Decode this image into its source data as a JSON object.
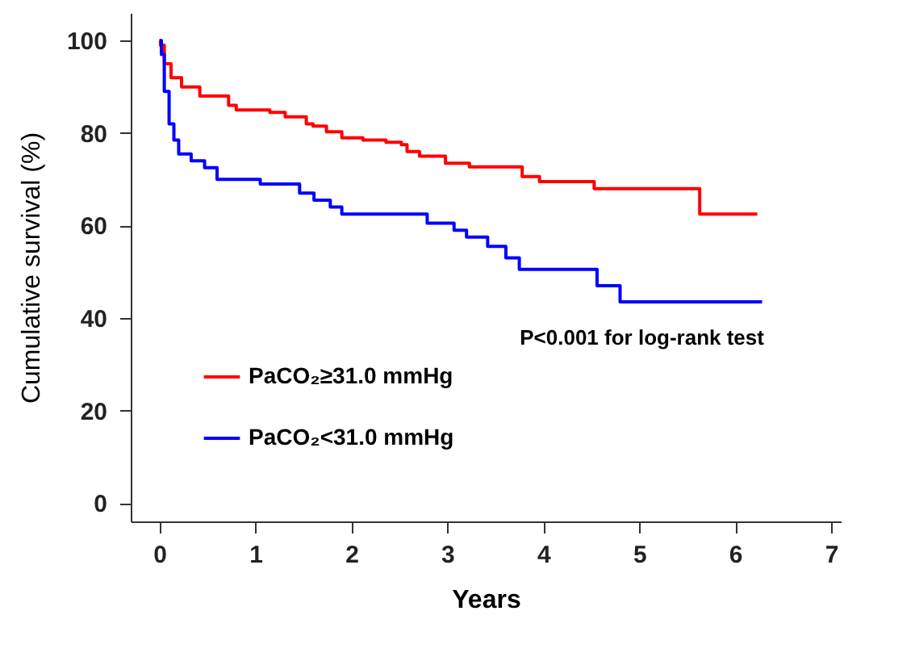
{
  "chart_data": {
    "type": "step",
    "xlabel": "Years",
    "ylabel": "Cumulative survival (%)",
    "xlim": [
      -0.3,
      7.1
    ],
    "xticks": [
      0,
      1,
      2,
      3,
      4,
      5,
      6,
      7
    ],
    "ylim": [
      -4,
      106
    ],
    "yticks": [
      0,
      20,
      40,
      60,
      80,
      100
    ],
    "grid": false,
    "legend": "bottom left",
    "marker": "none",
    "line_style": "solid",
    "annotations": [
      "P<0.001 for log-rank test"
    ],
    "series": [
      {
        "name": "PaCO₂≥31.0 mmHg",
        "color": "#ff0000",
        "x": [
          0,
          0.01,
          0.05,
          0.12,
          0.23,
          0.42,
          0.72,
          0.8,
          1.15,
          1.31,
          1.53,
          1.6,
          1.74,
          1.9,
          2.12,
          2.36,
          2.52,
          2.58,
          2.71,
          2.98,
          3.23,
          3.78,
          3.96,
          4.53,
          5.63,
          6.23
        ],
        "values": [
          100,
          99,
          95,
          92,
          90,
          88,
          86,
          85,
          84.5,
          83.5,
          82,
          81.5,
          80.3,
          79,
          78.5,
          78,
          77.5,
          76,
          75,
          73.5,
          72.7,
          70.6,
          69.5,
          68,
          62.5,
          62.5
        ]
      },
      {
        "name": "PaCO₂<31.0 mmHg",
        "color": "#0000ff",
        "x": [
          0,
          0.02,
          0.05,
          0.1,
          0.15,
          0.2,
          0.33,
          0.47,
          0.6,
          1.05,
          1.46,
          1.61,
          1.78,
          1.9,
          2.79,
          3.07,
          3.2,
          3.42,
          3.61,
          3.75,
          4.56,
          4.8,
          6.28
        ],
        "values": [
          100,
          97,
          89,
          82,
          78.5,
          75.5,
          74,
          72.5,
          70,
          69,
          67,
          65.5,
          64,
          62.5,
          60.5,
          59,
          57.5,
          55.5,
          53,
          50.5,
          47,
          43.5,
          43.5
        ]
      }
    ]
  }
}
